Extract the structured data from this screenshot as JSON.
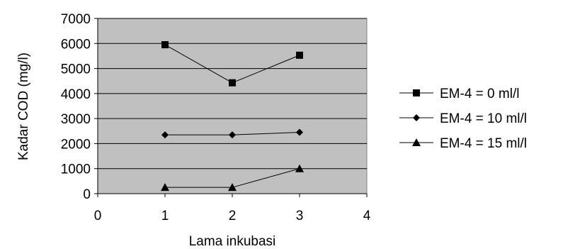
{
  "chart_data": {
    "type": "line",
    "xlabel": "Lama inkubasi",
    "ylabel": "Kadar COD (mg/l)",
    "xlim": [
      0,
      4
    ],
    "ylim": [
      0,
      7000
    ],
    "xticks": [
      "0",
      "1",
      "2",
      "3",
      "4"
    ],
    "yticks": [
      "0",
      "1000",
      "2000",
      "3000",
      "4000",
      "5000",
      "6000",
      "7000"
    ],
    "grid": "horizontal",
    "legend_position": "right",
    "plot_background": "#c0c0c0",
    "line_color": "#000000",
    "series": [
      {
        "name": "EM-4 = 0 ml/l",
        "marker": "square",
        "x": [
          1,
          2,
          3
        ],
        "y": [
          5950,
          4430,
          5530
        ]
      },
      {
        "name": "EM-4 = 10 ml/l",
        "marker": "diamond",
        "x": [
          1,
          2,
          3
        ],
        "y": [
          2350,
          2350,
          2450
        ]
      },
      {
        "name": "EM-4 = 15 ml/l",
        "marker": "triangle",
        "x": [
          1,
          2,
          3
        ],
        "y": [
          250,
          250,
          1000
        ]
      }
    ]
  }
}
